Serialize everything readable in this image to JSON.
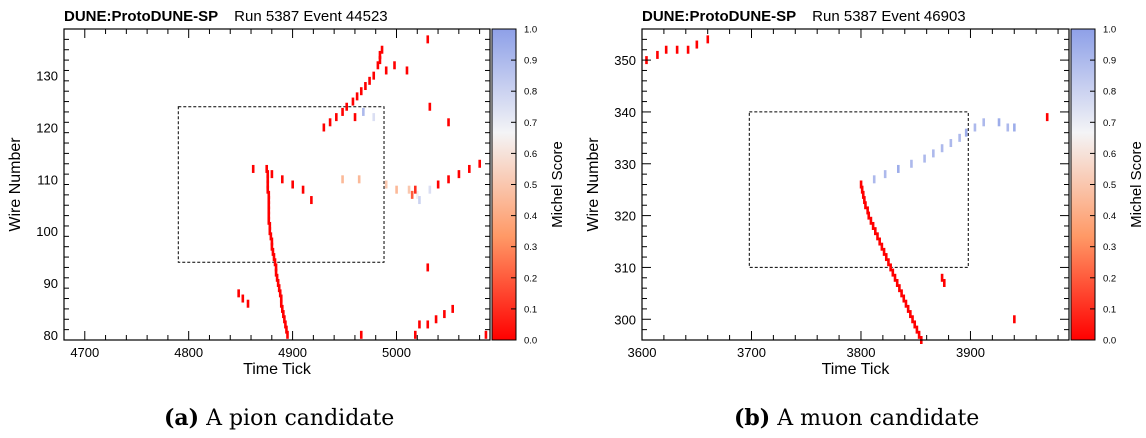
{
  "figures": [
    {
      "detector": "DUNE:ProtoDUNE-SP",
      "run_event": "Run 5387 Event 44523",
      "caption_tag": "(a)",
      "caption_text": "A pion candidate"
    },
    {
      "detector": "DUNE:ProtoDUNE-SP",
      "run_event": "Run 5387 Event 46903",
      "caption_tag": "(b)",
      "caption_text": "A muon candidate"
    }
  ],
  "chart_data": [
    {
      "type": "scatter",
      "title": "DUNE:ProtoDUNE-SP    Run 5387 Event 44523",
      "xlabel": "Time Tick",
      "ylabel": "Wire Number",
      "zlabel": "Michel Score",
      "xlim": [
        4680,
        5090
      ],
      "ylim": [
        79,
        139
      ],
      "xticks": [
        4700,
        4800,
        4900,
        5000
      ],
      "yticks": [
        80,
        90,
        100,
        110,
        120,
        130
      ],
      "zlim": [
        0,
        1
      ],
      "zticks": [
        0.0,
        0.1,
        0.2,
        0.3,
        0.4,
        0.5,
        0.6,
        0.7,
        0.8,
        0.9,
        1.0
      ],
      "colorscale": [
        "#ff0000",
        "#ff9966",
        "#f4f4f6",
        "#8ea0e8"
      ],
      "region_box": {
        "x": [
          4790,
          4988
        ],
        "y": [
          94,
          124
        ]
      },
      "points_note": "each point: [time tick, wire number, michel score]",
      "points": [
        [
          4877,
          102,
          0
        ],
        [
          4878,
          101,
          0
        ],
        [
          4878,
          100,
          0
        ],
        [
          4879,
          99,
          0
        ],
        [
          4880,
          98,
          0
        ],
        [
          4880,
          97,
          0
        ],
        [
          4881,
          96,
          0
        ],
        [
          4882,
          95,
          0
        ],
        [
          4883,
          94,
          0
        ],
        [
          4884,
          93,
          0
        ],
        [
          4884,
          92,
          0
        ],
        [
          4885,
          91,
          0
        ],
        [
          4886,
          90,
          0
        ],
        [
          4887,
          89,
          0
        ],
        [
          4888,
          88,
          0
        ],
        [
          4889,
          87,
          0
        ],
        [
          4889,
          86,
          0
        ],
        [
          4890,
          85,
          0
        ],
        [
          4891,
          84,
          0
        ],
        [
          4892,
          83,
          0
        ],
        [
          4893,
          82,
          0
        ],
        [
          4894,
          81,
          0
        ],
        [
          4895,
          80,
          0
        ],
        [
          4875,
          112,
          0
        ],
        [
          4876,
          111,
          0
        ],
        [
          4876,
          110,
          0
        ],
        [
          4876,
          109,
          0
        ],
        [
          4876,
          108,
          0
        ],
        [
          4877,
          107,
          0
        ],
        [
          4877,
          106,
          0
        ],
        [
          4877,
          105,
          0
        ],
        [
          4877,
          104,
          0
        ],
        [
          4877,
          103,
          0
        ],
        [
          4848,
          88,
          0
        ],
        [
          4852,
          87,
          0
        ],
        [
          4857,
          86,
          0
        ],
        [
          4862,
          112,
          0
        ],
        [
          4880,
          111,
          0
        ],
        [
          4890,
          110,
          0
        ],
        [
          4900,
          109,
          0
        ],
        [
          4910,
          108,
          0
        ],
        [
          4918,
          106,
          0
        ],
        [
          4948,
          110,
          0.45
        ],
        [
          4964,
          110,
          0.45
        ],
        [
          4990,
          109,
          0.5
        ],
        [
          5000,
          108,
          0.45
        ],
        [
          5012,
          108,
          0.5
        ],
        [
          5020,
          107,
          0.65
        ],
        [
          5032,
          108,
          0.75
        ],
        [
          5018,
          108,
          0.1
        ],
        [
          5015,
          107,
          0.2
        ],
        [
          5022,
          106,
          0.8
        ],
        [
          5040,
          109,
          0
        ],
        [
          5050,
          110,
          0
        ],
        [
          5060,
          111,
          0
        ],
        [
          5070,
          112,
          0
        ],
        [
          5080,
          113,
          0
        ],
        [
          4930,
          120,
          0
        ],
        [
          4936,
          121,
          0
        ],
        [
          4942,
          122,
          0
        ],
        [
          4948,
          123,
          0
        ],
        [
          4952,
          124,
          0
        ],
        [
          4958,
          125,
          0
        ],
        [
          4962,
          126,
          0
        ],
        [
          4966,
          127,
          0
        ],
        [
          4970,
          128,
          0
        ],
        [
          4974,
          129,
          0
        ],
        [
          4978,
          130,
          0
        ],
        [
          4982,
          132,
          0
        ],
        [
          4984,
          133,
          0
        ],
        [
          4986,
          135,
          0
        ],
        [
          4984,
          134,
          0
        ],
        [
          4978,
          122,
          0.75
        ],
        [
          4968,
          123,
          0.9
        ],
        [
          4960,
          122,
          0
        ],
        [
          4990,
          131,
          0
        ],
        [
          4998,
          132,
          0
        ],
        [
          5010,
          131,
          0
        ],
        [
          5032,
          124,
          0
        ],
        [
          5030,
          137,
          0
        ],
        [
          5050,
          121,
          0
        ],
        [
          5030,
          93,
          0
        ],
        [
          4966,
          80,
          0
        ],
        [
          5018,
          80,
          0
        ],
        [
          5022,
          82,
          0
        ],
        [
          5030,
          82,
          0
        ],
        [
          5038,
          83,
          0
        ],
        [
          5046,
          84,
          0
        ],
        [
          5054,
          85,
          0
        ],
        [
          5086,
          80,
          0
        ]
      ]
    },
    {
      "type": "scatter",
      "title": "DUNE:ProtoDUNE-SP    Run 5387 Event 46903",
      "xlabel": "Time Tick",
      "ylabel": "Wire Number",
      "zlabel": "Michel Score",
      "xlim": [
        3600,
        3990
      ],
      "ylim": [
        296,
        356
      ],
      "xticks": [
        3600,
        3700,
        3800,
        3900
      ],
      "yticks": [
        300,
        310,
        320,
        330,
        340,
        350
      ],
      "zlim": [
        0,
        1
      ],
      "zticks": [
        0.0,
        0.1,
        0.2,
        0.3,
        0.4,
        0.5,
        0.6,
        0.7,
        0.8,
        0.9,
        1.0
      ],
      "colorscale": [
        "#ff0000",
        "#ff9966",
        "#f4f4f6",
        "#8ea0e8"
      ],
      "region_box": {
        "x": [
          3698,
          3898
        ],
        "y": [
          310,
          340
        ]
      },
      "points_note": "each point: [time tick, wire number, michel score]",
      "points": [
        [
          3800,
          326,
          0
        ],
        [
          3801,
          325,
          0
        ],
        [
          3802,
          324,
          0
        ],
        [
          3803,
          323,
          0
        ],
        [
          3804,
          322,
          0
        ],
        [
          3806,
          321,
          0
        ],
        [
          3807,
          320,
          0
        ],
        [
          3809,
          319,
          0
        ],
        [
          3811,
          318,
          0
        ],
        [
          3813,
          317,
          0
        ],
        [
          3815,
          316,
          0
        ],
        [
          3817,
          315,
          0
        ],
        [
          3819,
          314,
          0
        ],
        [
          3821,
          313,
          0
        ],
        [
          3823,
          312,
          0
        ],
        [
          3825,
          311,
          0
        ],
        [
          3827,
          310,
          0
        ],
        [
          3829,
          309,
          0
        ],
        [
          3831,
          308,
          0
        ],
        [
          3833,
          307,
          0
        ],
        [
          3835,
          306,
          0
        ],
        [
          3837,
          305,
          0
        ],
        [
          3839,
          304,
          0
        ],
        [
          3841,
          303,
          0
        ],
        [
          3843,
          302,
          0
        ],
        [
          3845,
          301,
          0
        ],
        [
          3847,
          300,
          0
        ],
        [
          3849,
          299,
          0
        ],
        [
          3851,
          298,
          0
        ],
        [
          3853,
          297,
          0
        ],
        [
          3855,
          296,
          0
        ],
        [
          3812,
          327,
          0.9
        ],
        [
          3822,
          328,
          0.9
        ],
        [
          3834,
          329,
          0.95
        ],
        [
          3846,
          330,
          0.9
        ],
        [
          3858,
          331,
          0.9
        ],
        [
          3866,
          332,
          0.9
        ],
        [
          3874,
          333,
          0.9
        ],
        [
          3882,
          334,
          0.9
        ],
        [
          3890,
          335,
          0.9
        ],
        [
          3896,
          336,
          0.95
        ],
        [
          3904,
          337,
          0.9
        ],
        [
          3912,
          338,
          0.9
        ],
        [
          3926,
          338,
          0.95
        ],
        [
          3934,
          337,
          0.9
        ],
        [
          3940,
          337,
          0.95
        ],
        [
          3604,
          350,
          0
        ],
        [
          3614,
          351,
          0
        ],
        [
          3622,
          352,
          0
        ],
        [
          3632,
          352,
          0
        ],
        [
          3642,
          352,
          0
        ],
        [
          3650,
          353,
          0
        ],
        [
          3660,
          354,
          0
        ],
        [
          3874,
          308,
          0
        ],
        [
          3876,
          307,
          0
        ],
        [
          3940,
          300,
          0
        ],
        [
          3970,
          339,
          0
        ]
      ]
    }
  ]
}
